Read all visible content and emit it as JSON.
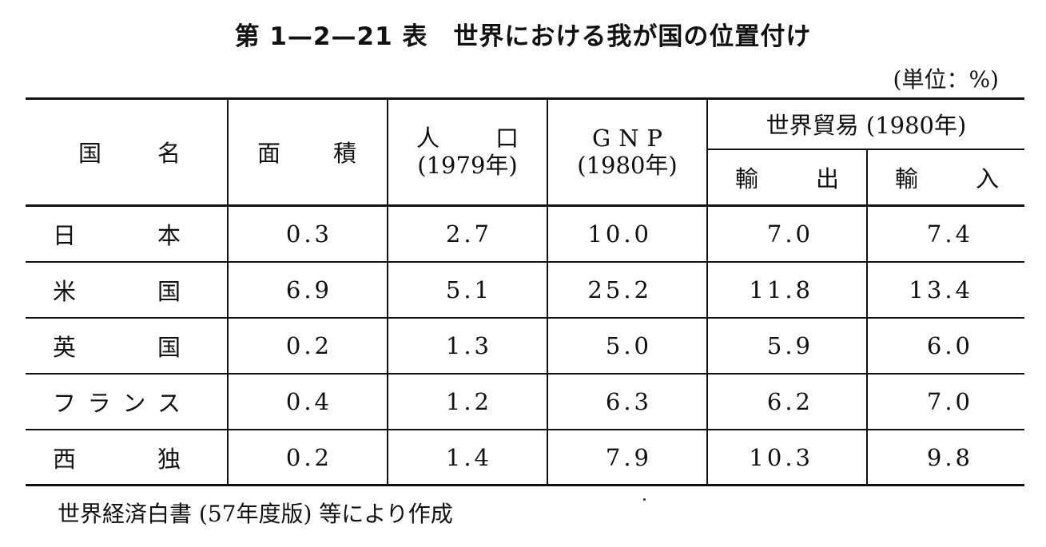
{
  "title": "第 1—2—21 表　世界における我が国の位置付け",
  "unit": "(単位：%)",
  "headers": {
    "country": [
      "国",
      "名"
    ],
    "area": [
      "面",
      "積"
    ],
    "population": {
      "line1": [
        "人",
        "口"
      ],
      "line2": "(1979年)"
    },
    "gnp": {
      "line1": "GNP",
      "line2": "(1980年)"
    },
    "trade": "世界貿易 (1980年)",
    "exports": [
      "輸",
      "出"
    ],
    "imports": [
      "輸",
      "入"
    ]
  },
  "rows": [
    {
      "country": [
        "日",
        "本"
      ],
      "area": "0.3",
      "population": "2.7",
      "gnp": "10.0",
      "exports": "7.0",
      "imports": "7.4"
    },
    {
      "country": [
        "米",
        "国"
      ],
      "area": "6.9",
      "population": "5.1",
      "gnp": "25.2",
      "exports": "11.8",
      "imports": "13.4"
    },
    {
      "country": [
        "英",
        "国"
      ],
      "area": "0.2",
      "population": "1.3",
      "gnp": "5.0",
      "exports": "5.9",
      "imports": "6.0"
    },
    {
      "country": [
        "フ",
        "ラ",
        "ン",
        "ス"
      ],
      "area": "0.4",
      "population": "1.2",
      "gnp": "6.3",
      "exports": "6.2",
      "imports": "7.0"
    },
    {
      "country": [
        "西",
        "独"
      ],
      "area": "0.2",
      "population": "1.4",
      "gnp": "7.9",
      "exports": "10.3",
      "imports": "9.8"
    }
  ],
  "source": "世界経済白書 (57年度版) 等により作成"
}
